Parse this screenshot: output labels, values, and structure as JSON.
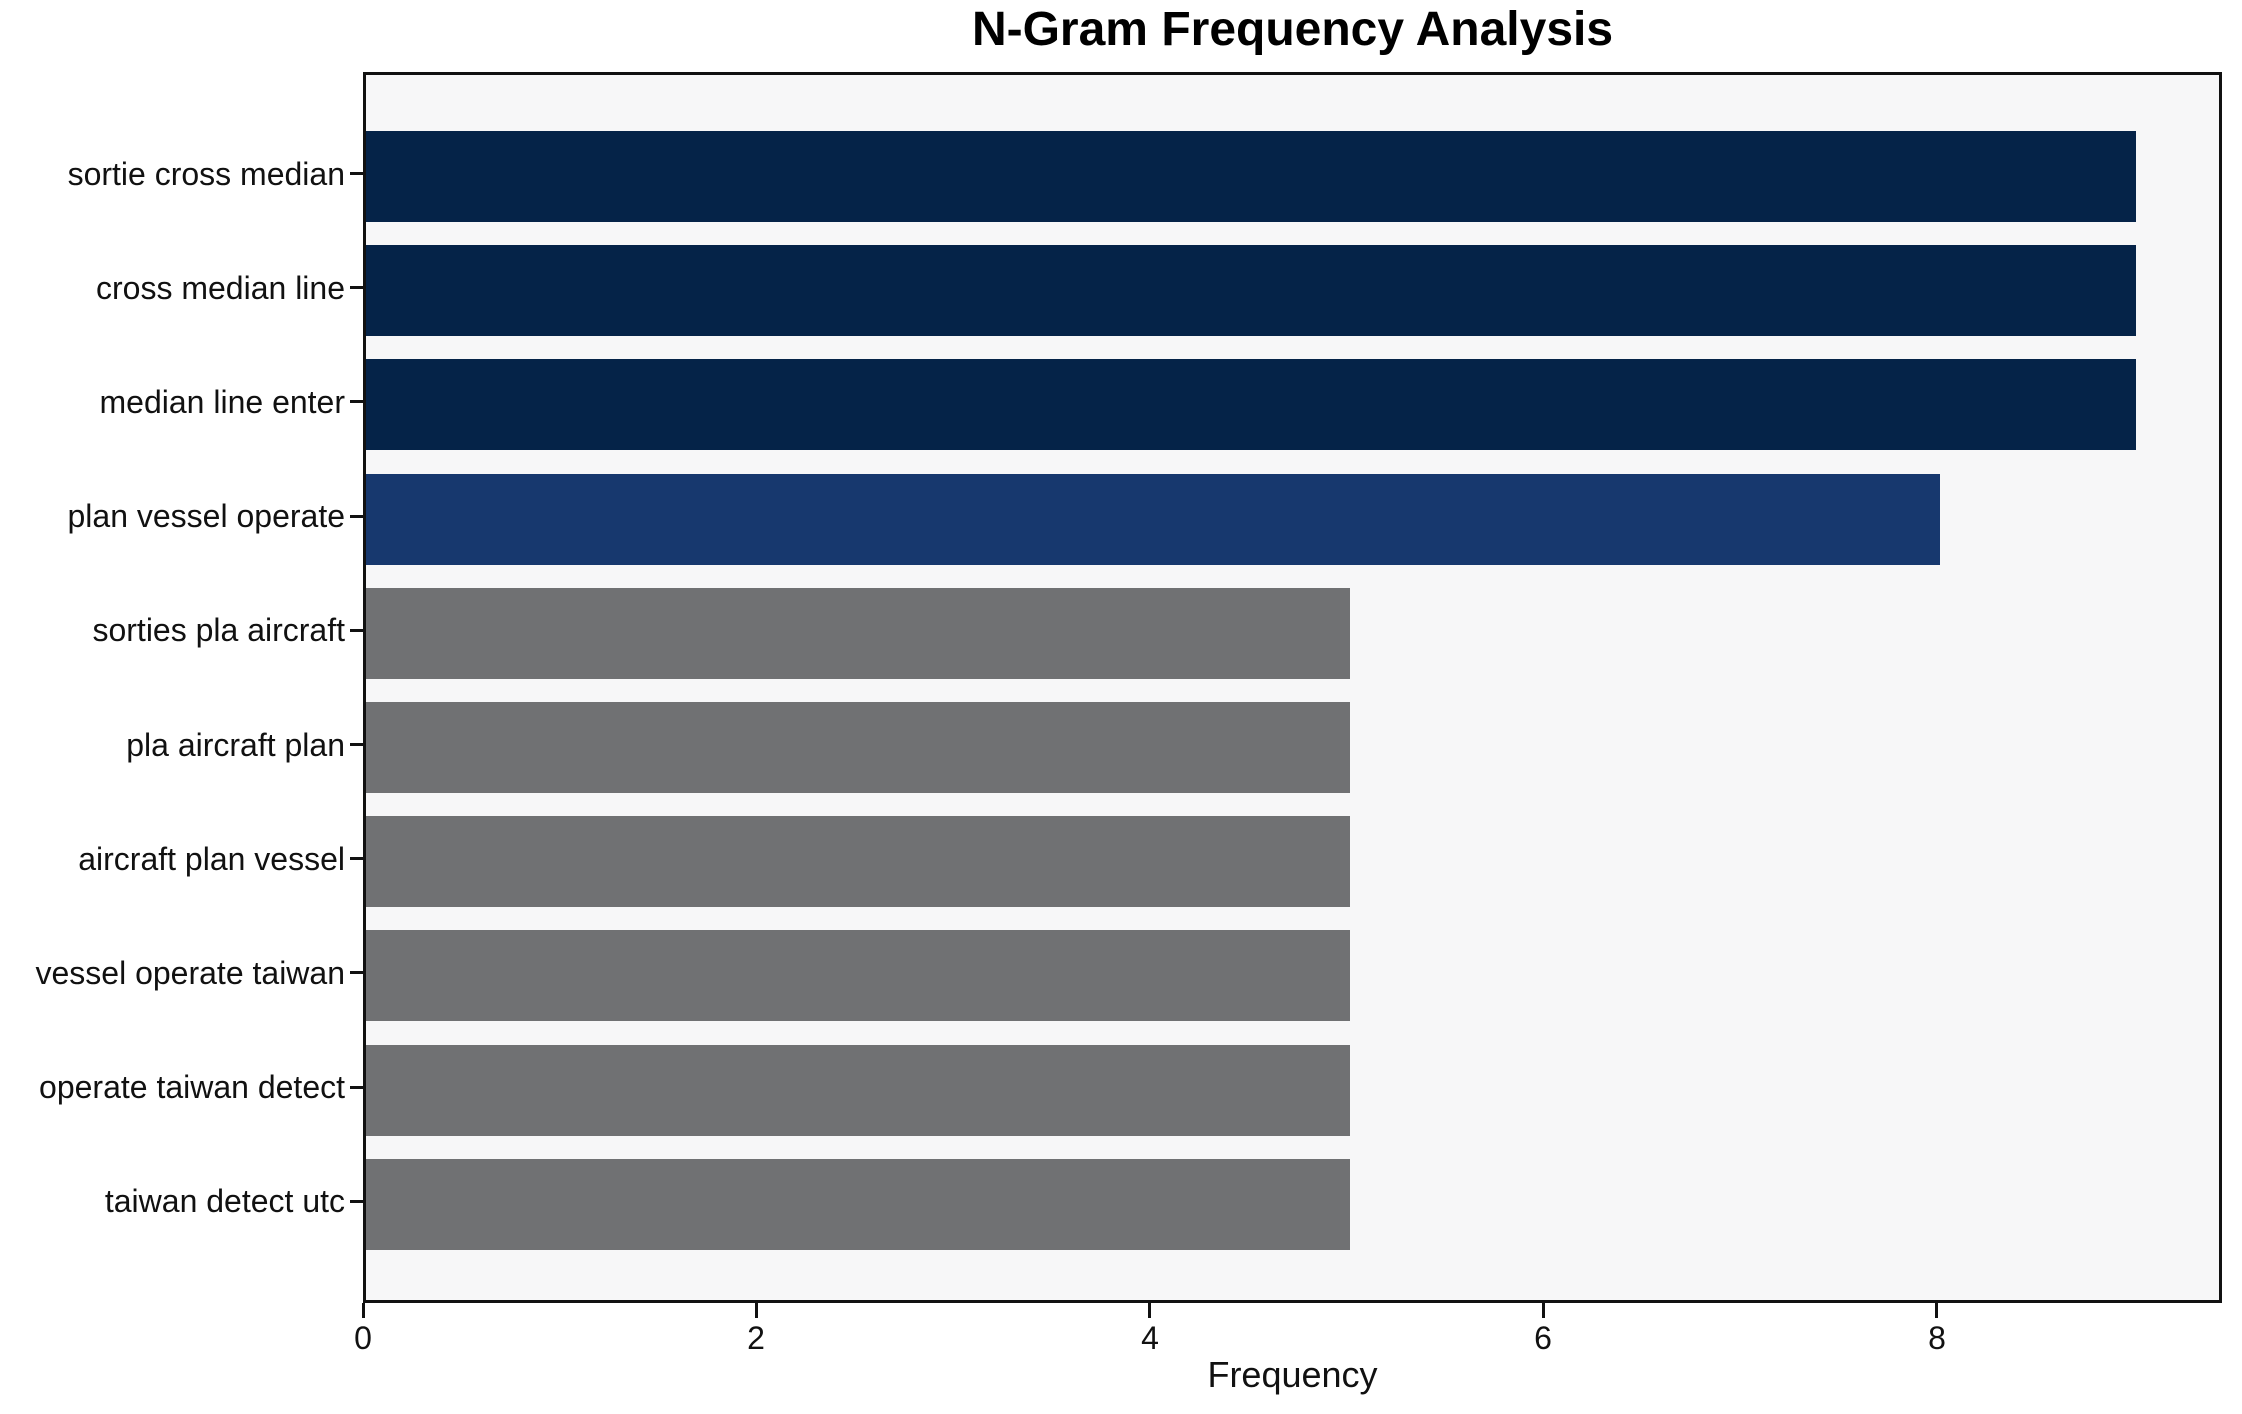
{
  "title": "N-Gram Frequency Analysis",
  "chart_data": {
    "type": "bar",
    "orientation": "horizontal",
    "title": "N-Gram Frequency Analysis",
    "categories": [
      "sortie cross median",
      "cross median line",
      "median line enter",
      "plan vessel operate",
      "sorties pla aircraft",
      "pla aircraft plan",
      "aircraft plan vessel",
      "vessel operate taiwan",
      "operate taiwan detect",
      "taiwan detect utc"
    ],
    "values": [
      9,
      9,
      9,
      8,
      5,
      5,
      5,
      5,
      5,
      5
    ],
    "bar_colors": [
      "#052348",
      "#052348",
      "#052348",
      "#17386e",
      "#707173",
      "#707173",
      "#707173",
      "#707173",
      "#707173",
      "#707173"
    ],
    "xlabel": "Frequency",
    "ylabel": "",
    "xlim": [
      0,
      9.45
    ],
    "x_ticks": [
      0,
      2,
      4,
      6,
      8
    ],
    "grid": false,
    "legend": "none",
    "plot_background": "#f7f7f8",
    "figure_background": "#ffffff",
    "spine_color": "#111111",
    "text_color": "#000000"
  }
}
